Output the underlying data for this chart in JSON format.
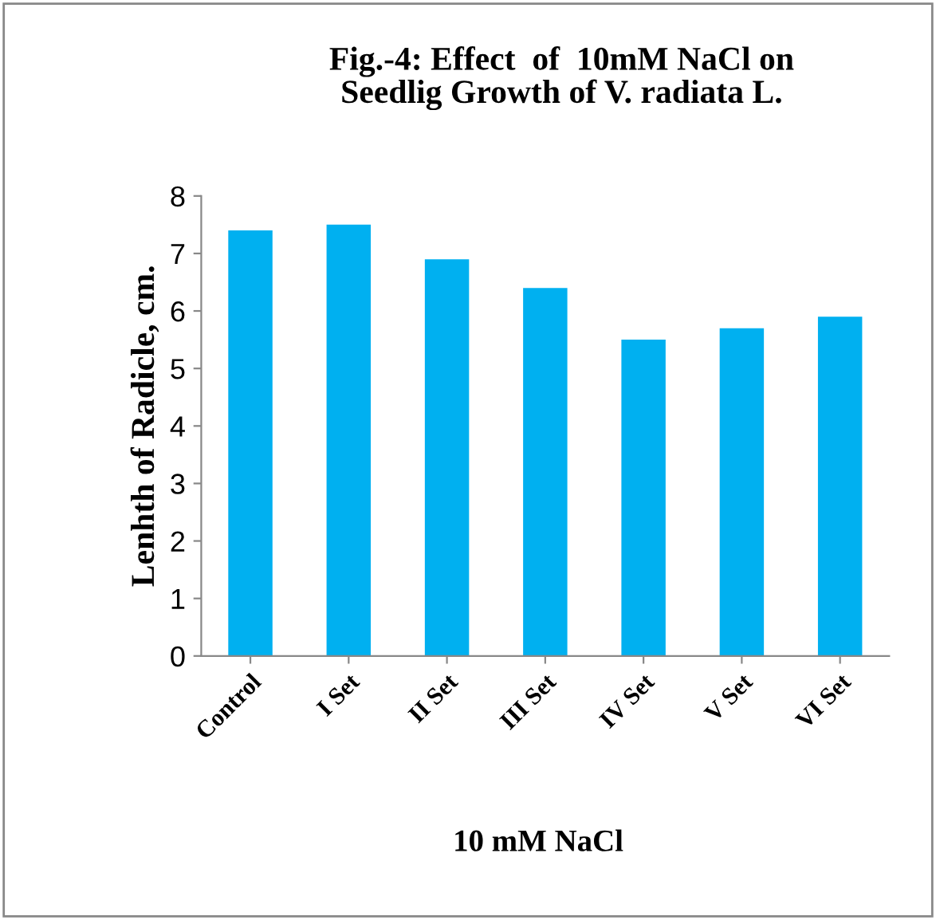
{
  "chart_data": {
    "type": "bar",
    "title": "Fig.-4: Effect  of  10mM NaCl on\nSeedlig Growth of V. radiata L.",
    "xlabel": "10 mM NaCl",
    "ylabel": "Lenhth of Radicle, cm.",
    "categories": [
      "Control",
      "I Set",
      "II Set",
      "III Set",
      "IV Set",
      "V Set",
      "VI Set"
    ],
    "values": [
      7.4,
      7.5,
      6.9,
      6.4,
      5.5,
      5.7,
      5.9
    ],
    "color": "#00b0f0",
    "ylim": [
      0,
      8
    ],
    "yticks": [
      0,
      1,
      2,
      3,
      4,
      5,
      6,
      7,
      8
    ],
    "grid": false,
    "legend": false
  }
}
